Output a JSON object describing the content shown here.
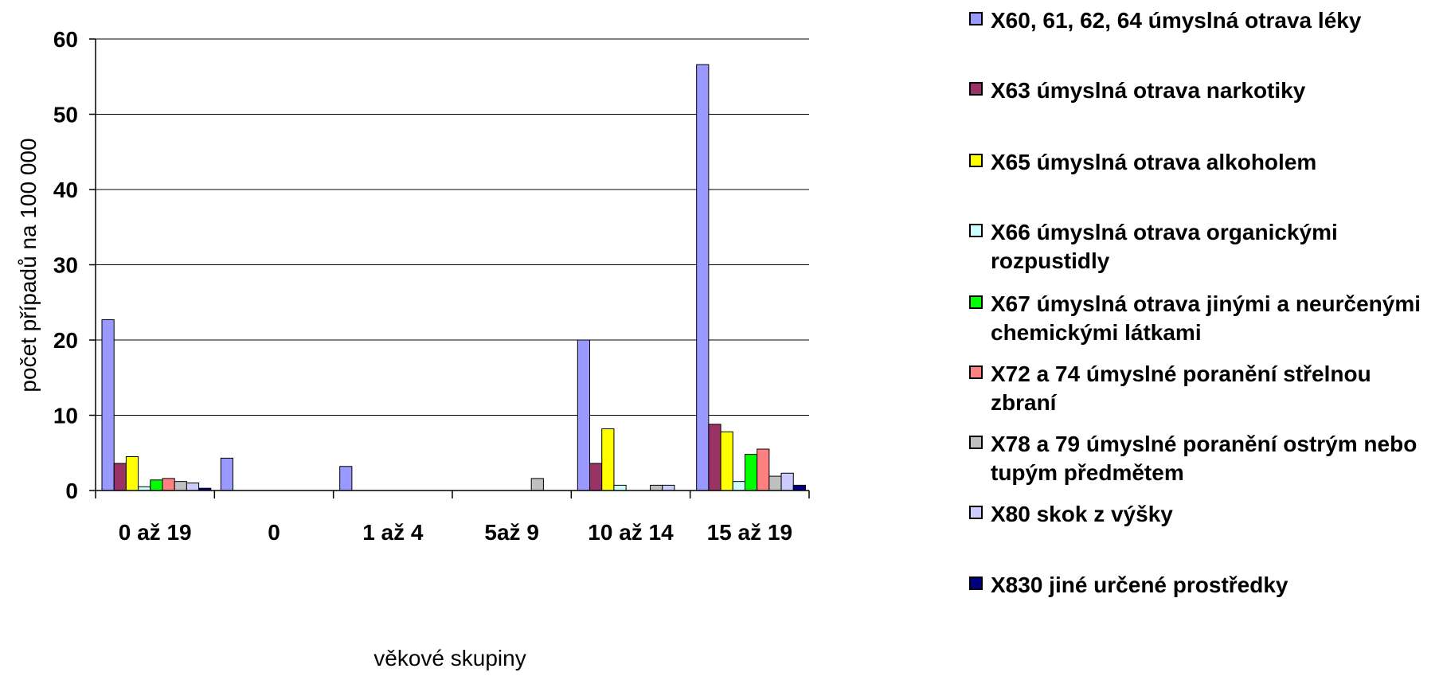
{
  "chart_data": {
    "type": "bar",
    "title": "",
    "xlabel": "věkové skupiny",
    "ylabel": "počet případů na 100 000",
    "ylim": [
      0,
      60
    ],
    "yticks": [
      "0",
      "10",
      "20",
      "30",
      "40",
      "50",
      "60"
    ],
    "grid": true,
    "legend_position": "right",
    "categories": [
      "0 až 19",
      "0",
      "1 až 4",
      "5až 9",
      "10 až 14",
      "15 až 19"
    ],
    "series": [
      {
        "name": "X60, 61, 62, 64 úmyslná otrava léky",
        "color": "#9999FF",
        "values": [
          22.7,
          4.3,
          3.2,
          0,
          20.0,
          56.6
        ]
      },
      {
        "name": "X63 úmyslná otrava narkotiky",
        "color": "#993366",
        "values": [
          3.6,
          0,
          0,
          0,
          3.6,
          8.8
        ]
      },
      {
        "name": "X65 úmyslná otrava alkoholem",
        "color": "#FFFF00",
        "values": [
          4.5,
          0,
          0,
          0,
          8.2,
          7.8
        ]
      },
      {
        "name": "X66 úmyslná otrava organickými rozpustidly",
        "color": "#CCFFFF",
        "values": [
          0.5,
          0,
          0,
          0,
          0.7,
          1.2
        ]
      },
      {
        "name": "X67 úmyslná otrava jinými a neurčenými chemickými látkami",
        "color": "#00FF00",
        "values": [
          1.4,
          0,
          0,
          0,
          0,
          4.8
        ]
      },
      {
        "name": "X72 a 74 úmyslné poranění střelnou zbraní",
        "color": "#FF8080",
        "values": [
          1.6,
          0,
          0,
          0,
          0,
          5.5
        ]
      },
      {
        "name": "X78 a 79 úmyslné poranění ostrým nebo tupým předmětem",
        "color": "#C0C0C0",
        "values": [
          1.2,
          0,
          0,
          1.6,
          0.7,
          1.9
        ]
      },
      {
        "name": "X80 skok z výšky",
        "color": "#CCCCFF",
        "values": [
          1.0,
          0,
          0,
          0,
          0.7,
          2.3
        ]
      },
      {
        "name": "X830 jiné určené prostředky",
        "color": "#000080",
        "values": [
          0.3,
          0,
          0,
          0,
          0,
          0.7
        ]
      }
    ]
  }
}
